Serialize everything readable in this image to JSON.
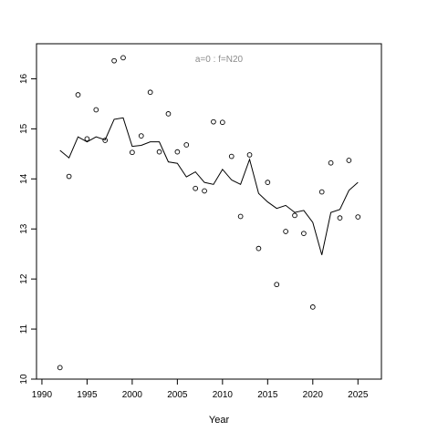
{
  "chart_data": {
    "type": "line",
    "annotation": "a=0  :  f=N20",
    "xlabel": "Year",
    "ylabel": "",
    "xlim": [
      1989.4,
      2027.6
    ],
    "ylim": [
      10,
      16.7
    ],
    "x_ticks": [
      1990,
      1995,
      2000,
      2005,
      2010,
      2015,
      2020,
      2025
    ],
    "y_ticks": [
      10,
      11,
      12,
      13,
      14,
      15,
      16
    ],
    "grid": false,
    "legend": "none",
    "colors": {
      "line": "#000000",
      "points": "#000000",
      "annotation": "#8c8c8c",
      "axis": "#000000"
    },
    "series": [
      {
        "type": "scatter",
        "x": [
          1992,
          1993,
          1994,
          1995,
          1996,
          1997,
          1998,
          1999,
          2000,
          2001,
          2002,
          2003,
          2004,
          2005,
          2006,
          2007,
          2008,
          2009,
          2010,
          2011,
          2012,
          2013,
          2014,
          2015,
          2016,
          2017,
          2018,
          2019,
          2020,
          2021,
          2022,
          2023,
          2024,
          2025
        ],
        "values": [
          10.23,
          14.05,
          15.68,
          14.8,
          15.38,
          14.77,
          16.36,
          16.42,
          14.53,
          14.86,
          15.73,
          14.54,
          15.3,
          14.54,
          14.68,
          13.81,
          13.76,
          15.14,
          15.13,
          14.45,
          13.25,
          14.48,
          12.61,
          13.93,
          11.89,
          12.95,
          13.27,
          12.91,
          11.44,
          13.74,
          14.32,
          13.22,
          14.37,
          13.24
        ]
      },
      {
        "type": "line",
        "x": [
          1992,
          1993,
          1994,
          1995,
          1996,
          1997,
          1998,
          1999,
          2000,
          2001,
          2002,
          2003,
          2004,
          2005,
          2006,
          2007,
          2008,
          2009,
          2010,
          2011,
          2012,
          2013,
          2014,
          2015,
          2016,
          2017,
          2018,
          2019,
          2020,
          2021,
          2022,
          2023,
          2024,
          2025
        ],
        "values": [
          14.57,
          14.42,
          14.84,
          14.74,
          14.84,
          14.78,
          15.19,
          15.22,
          14.65,
          14.67,
          14.74,
          14.74,
          14.34,
          14.31,
          14.04,
          14.14,
          13.93,
          13.89,
          14.19,
          13.98,
          13.89,
          14.39,
          13.71,
          13.54,
          13.41,
          13.47,
          13.33,
          13.37,
          13.13,
          12.48,
          13.33,
          13.39,
          13.77,
          13.93
        ]
      }
    ]
  }
}
